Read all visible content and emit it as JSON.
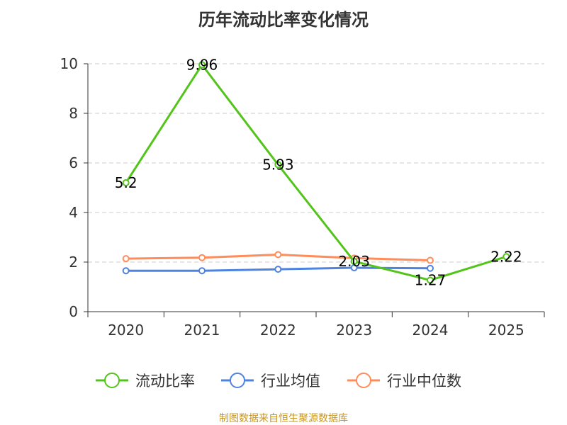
{
  "chart_data": {
    "type": "line",
    "title": "历年流动比率变化情况",
    "categories": [
      "2020",
      "2021",
      "2022",
      "2023",
      "2024",
      "2025"
    ],
    "ylim": [
      0,
      10
    ],
    "yticks": [
      0,
      2,
      4,
      6,
      8,
      10
    ],
    "grid": true,
    "legend_position": "bottom",
    "series": [
      {
        "name": "流动比率",
        "color": "#52c41a",
        "values": [
          5.2,
          9.96,
          5.93,
          2.03,
          1.27,
          2.22
        ],
        "labels": [
          "5.2",
          "9.96",
          "5.93",
          "2.03",
          "1.27",
          "2.22"
        ]
      },
      {
        "name": "行业均值",
        "color": "#4e83e0",
        "values": [
          1.65,
          1.65,
          1.71,
          1.77,
          1.75,
          null
        ]
      },
      {
        "name": "行业中位数",
        "color": "#ff8c5a",
        "values": [
          2.14,
          2.18,
          2.3,
          2.16,
          2.07,
          null
        ]
      }
    ]
  },
  "source": "制图数据来自恒生聚源数据库"
}
